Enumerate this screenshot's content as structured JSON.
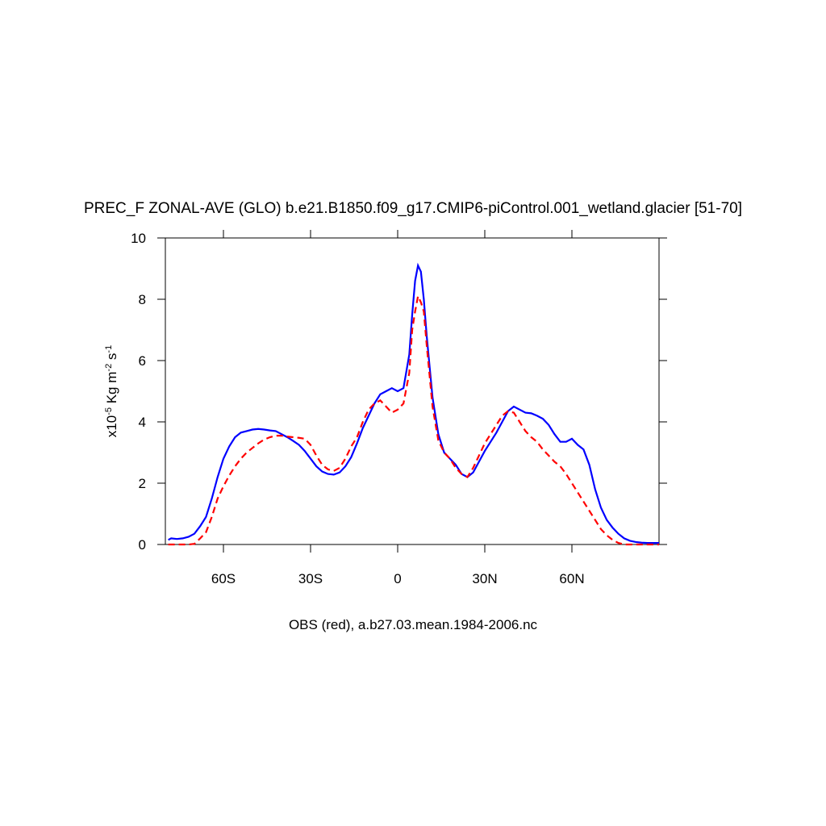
{
  "chart_data": {
    "type": "line",
    "title": "PREC_F ZONAL-AVE (GLO) b.e21.B1850.f09_g17.CMIP6-piControl.001_wetland.glacier [51-70]",
    "xlabel": "OBS (red), a.b27.03.mean.1984-2006.nc",
    "ylabel": [
      {
        "text": "x10"
      },
      {
        "text": "-5",
        "sup": true
      },
      {
        "text": " Kg m"
      },
      {
        "text": "-2",
        "sup": true
      },
      {
        "text": " s"
      },
      {
        "text": "-1",
        "sup": true
      }
    ],
    "xlim": [
      -80,
      90
    ],
    "xticks": [
      {
        "value": -60,
        "label": "60S"
      },
      {
        "value": -30,
        "label": "30S"
      },
      0,
      {
        "value": 30,
        "label": "30N"
      },
      {
        "value": 60,
        "label": "60N"
      }
    ],
    "ylim": [
      0,
      10
    ],
    "yticks": [
      0,
      2,
      4,
      6,
      8,
      10
    ],
    "grid": false,
    "x": [
      -79,
      -78,
      -76,
      -74,
      -72,
      -70,
      -68,
      -66,
      -64,
      -62,
      -60,
      -58,
      -56,
      -54,
      -52,
      -50,
      -48,
      -46,
      -44,
      -42,
      -40,
      -38,
      -36,
      -34,
      -32,
      -30,
      -28,
      -26,
      -24,
      -22,
      -20,
      -18,
      -16,
      -14,
      -12,
      -10,
      -8,
      -6,
      -4,
      -2,
      0,
      2,
      4,
      5,
      6,
      7,
      8,
      9,
      10,
      12,
      14,
      16,
      18,
      20,
      22,
      24,
      26,
      28,
      30,
      32,
      34,
      36,
      38,
      40,
      42,
      44,
      46,
      48,
      50,
      52,
      54,
      56,
      58,
      60,
      62,
      64,
      66,
      68,
      70,
      72,
      74,
      76,
      78,
      80,
      82,
      84,
      86,
      88,
      90
    ],
    "series": [
      {
        "color": "#0000ff",
        "dash": "solid",
        "values": [
          0.15,
          0.2,
          0.18,
          0.2,
          0.25,
          0.35,
          0.6,
          0.9,
          1.5,
          2.2,
          2.8,
          3.2,
          3.5,
          3.65,
          3.7,
          3.75,
          3.77,
          3.75,
          3.72,
          3.7,
          3.6,
          3.5,
          3.38,
          3.25,
          3.05,
          2.8,
          2.55,
          2.38,
          2.3,
          2.28,
          2.35,
          2.55,
          2.85,
          3.3,
          3.8,
          4.2,
          4.6,
          4.9,
          5.0,
          5.1,
          5.0,
          5.1,
          6.2,
          7.5,
          8.6,
          9.1,
          8.9,
          8.0,
          6.8,
          4.8,
          3.6,
          3.0,
          2.8,
          2.6,
          2.3,
          2.2,
          2.35,
          2.7,
          3.05,
          3.35,
          3.65,
          4.0,
          4.35,
          4.5,
          4.4,
          4.3,
          4.28,
          4.2,
          4.1,
          3.9,
          3.6,
          3.35,
          3.35,
          3.45,
          3.25,
          3.1,
          2.6,
          1.8,
          1.2,
          0.8,
          0.55,
          0.35,
          0.2,
          0.12,
          0.08,
          0.06,
          0.05,
          0.05,
          0.05
        ]
      },
      {
        "color": "#ff0000",
        "dash": "dashed",
        "values": [
          0,
          0,
          0,
          0,
          0,
          0.02,
          0.2,
          0.4,
          0.9,
          1.5,
          1.9,
          2.25,
          2.55,
          2.8,
          3.0,
          3.15,
          3.3,
          3.42,
          3.5,
          3.55,
          3.55,
          3.52,
          3.5,
          3.48,
          3.45,
          3.25,
          2.9,
          2.6,
          2.45,
          2.4,
          2.5,
          2.8,
          3.2,
          3.5,
          4.0,
          4.4,
          4.6,
          4.7,
          4.5,
          4.3,
          4.4,
          4.6,
          5.6,
          7.0,
          7.6,
          8.1,
          7.9,
          7.6,
          6.5,
          4.5,
          3.4,
          3.0,
          2.8,
          2.5,
          2.3,
          2.2,
          2.5,
          2.9,
          3.3,
          3.6,
          3.9,
          4.2,
          4.35,
          4.3,
          4.0,
          3.7,
          3.5,
          3.35,
          3.1,
          2.9,
          2.7,
          2.55,
          2.3,
          2.0,
          1.7,
          1.4,
          1.1,
          0.8,
          0.5,
          0.3,
          0.15,
          0.05,
          0,
          0,
          0,
          0,
          0,
          0,
          0
        ]
      }
    ]
  }
}
